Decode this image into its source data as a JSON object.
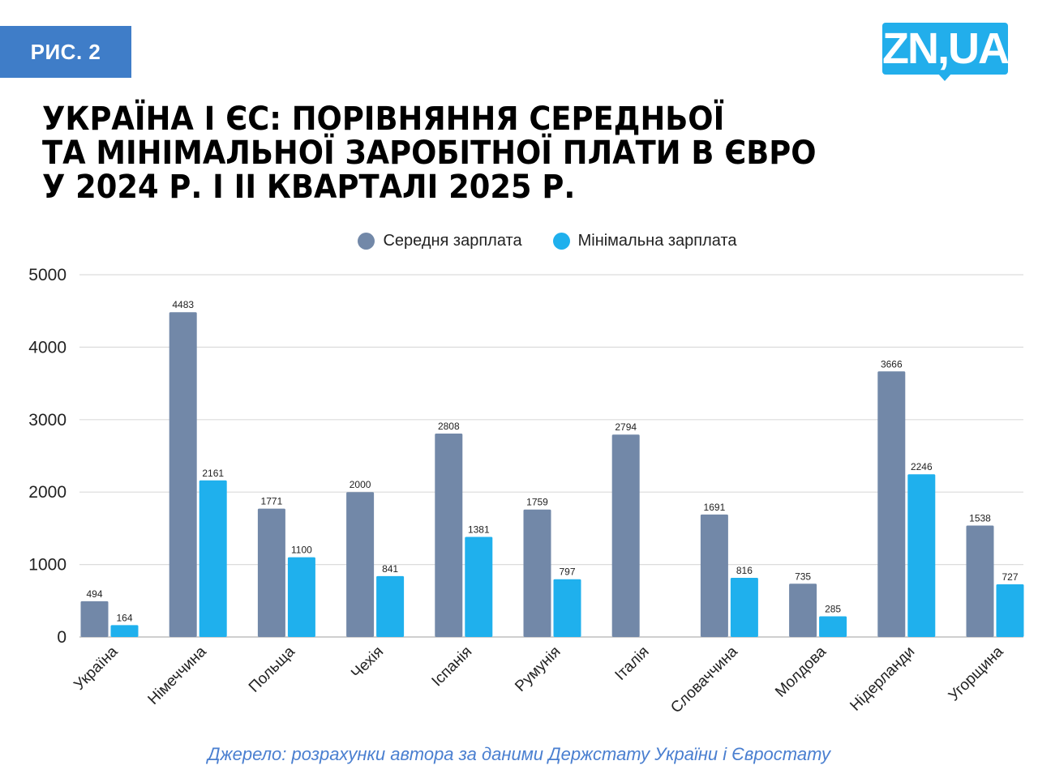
{
  "badge": "РИС. 2",
  "logo": "ZN,UA",
  "title_lines": [
    "УКРАЇНА І ЄС: ПОРІВНЯННЯ СЕРЕДНЬОЇ",
    "ТА МІНІМАЛЬНОЇ ЗАРОБІТНОЇ ПЛАТИ В ЄВРО",
    "У 2024 Р. І ІІ КВАРТАЛІ 2025 Р."
  ],
  "source": "Джерело: розрахунки автора за даними Держстату України і Євростату",
  "chart_data": {
    "type": "bar",
    "title": "УКРАЇНА І ЄС: ПОРІВНЯННЯ СЕРЕДНЬОЇ ТА МІНІМАЛЬНОЇ ЗАРОБІТНОЇ ПЛАТИ В ЄВРО У 2024 Р. І ІІ КВАРТАЛІ 2025 Р.",
    "categories": [
      "Україна",
      "Німеччина",
      "Польща",
      "Чехія",
      "Іспанія",
      "Румунія",
      "Італія",
      "Словаччина",
      "Молдова",
      "Нідерланди",
      "Угорщина"
    ],
    "series": [
      {
        "name": "Середня зарплата",
        "color": "#7288a8",
        "values": [
          494,
          4483,
          1771,
          2000,
          2808,
          1759,
          2794,
          1691,
          735,
          3666,
          1538
        ]
      },
      {
        "name": "Мінімальна зарплата",
        "color": "#1fb0ed",
        "values": [
          164,
          2161,
          1100,
          841,
          1381,
          797,
          null,
          816,
          285,
          2246,
          727
        ]
      }
    ],
    "ylim": [
      0,
      5000
    ],
    "yticks": [
      "0",
      "1000",
      "2000",
      "3000",
      "4000",
      "5000"
    ],
    "grid": true,
    "legend": "top-center",
    "data_labels": true
  }
}
